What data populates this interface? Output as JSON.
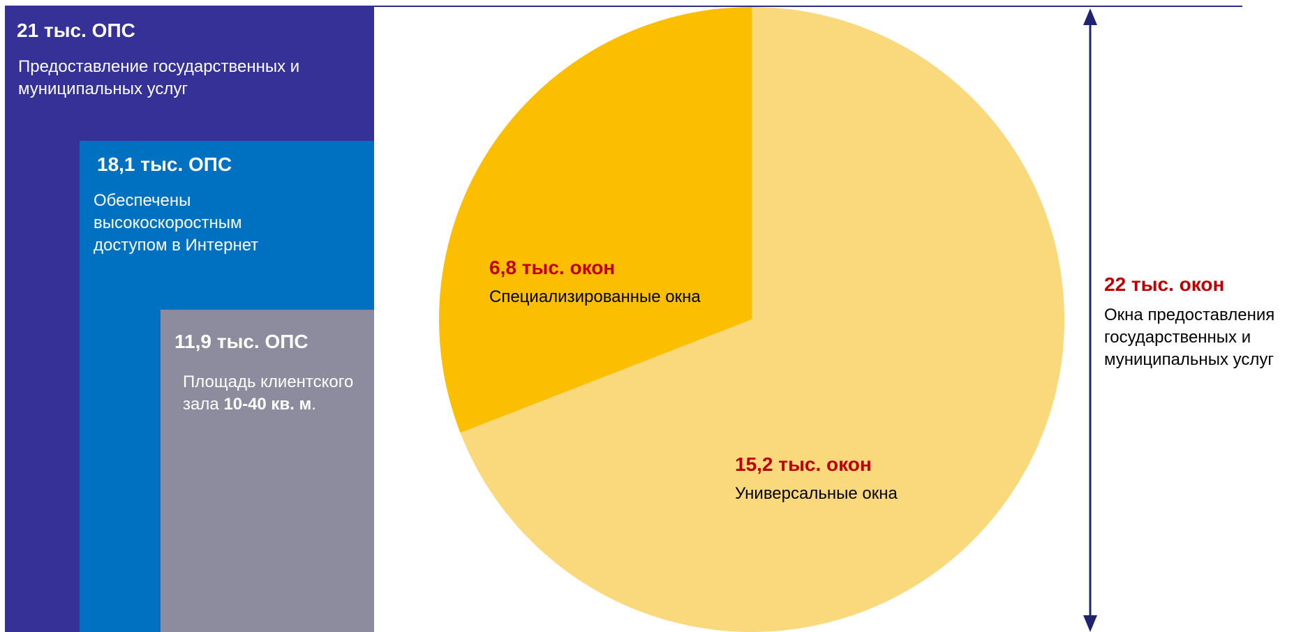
{
  "panels": [
    {
      "title": "21 тыс. ОПС",
      "desc": "Предоставление государственных и муниципальных услуг",
      "color": "#353197"
    },
    {
      "title": "18,1 тыс. ОПС",
      "desc": "Обеспечены высокоскоростным доступом в Интернет",
      "color": "#0070c0"
    },
    {
      "title": "11,9 тыс. ОПС",
      "desc_prefix": "Площадь клиентского зала ",
      "desc_bold": "10-40 кв. м",
      "desc_suffix": ".",
      "color": "#8c8c9e"
    }
  ],
  "total": {
    "value": "22 тыс. окон",
    "desc": "Окна предоставления государственных и муниципальных услуг"
  },
  "chart_data": {
    "type": "pie",
    "unit": "тыс. окон",
    "slices": [
      {
        "label": "6,8 тыс. окон",
        "name": "Специализированные окна",
        "value": 6.8,
        "color": "#fbbe00"
      },
      {
        "label": "15,2 тыс. окон",
        "name": "Универсальные окна",
        "value": 15.2,
        "color": "#fad97c"
      }
    ]
  },
  "colors": {
    "accent_value": "#c00000",
    "line": "#2b2e83",
    "arrow": "#1f2470"
  }
}
